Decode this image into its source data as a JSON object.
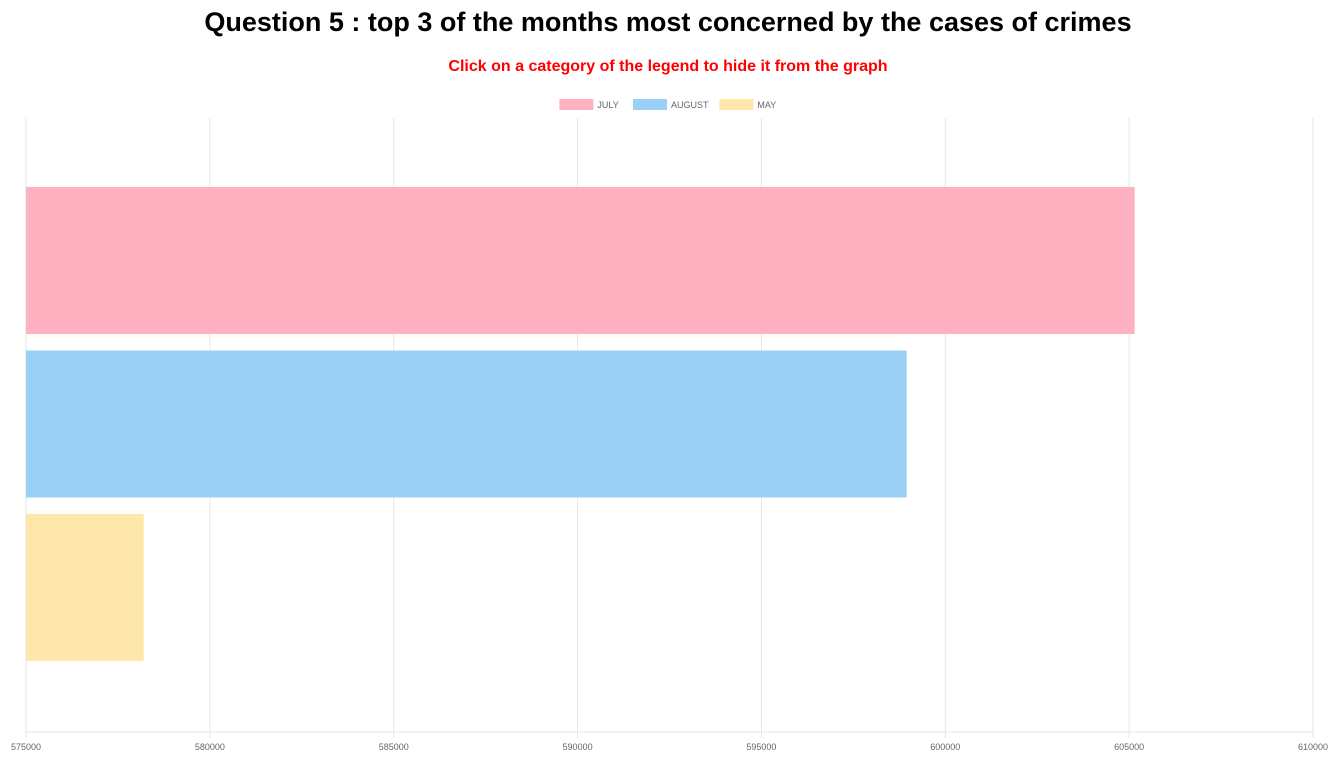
{
  "page": {
    "title": "Question 5 : top 3 of the months most concerned by the cases of crimes",
    "subtitle": "Click on a category of the legend to hide it from the graph"
  },
  "chart_data": {
    "type": "bar",
    "orientation": "horizontal",
    "series": [
      {
        "name": "JULY",
        "value": 605150,
        "color": "#ffb1c1"
      },
      {
        "name": "AUGUST",
        "value": 598950,
        "color": "#9ad0f5"
      },
      {
        "name": "MAY",
        "value": 578200,
        "color": "#ffe6aa"
      }
    ],
    "xlim": [
      575000,
      610000
    ],
    "xticks": [
      575000,
      580000,
      585000,
      590000,
      595000,
      600000,
      605000,
      610000
    ],
    "grid": true,
    "legend_position": "top-center"
  }
}
